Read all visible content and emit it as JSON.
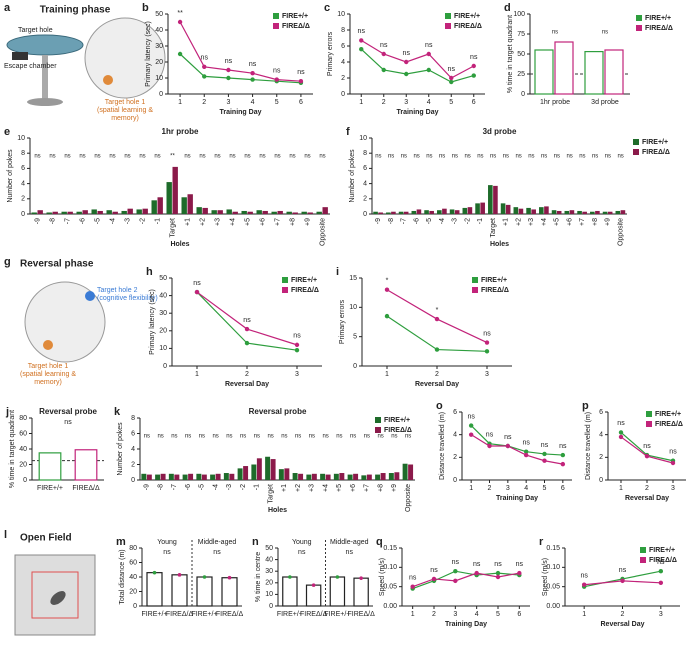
{
  "schematics": [
    {
      "label": "a",
      "title": "Training phase",
      "texts": [
        "Target hole",
        "Escape chamber",
        "Target hole 1",
        "(spatial learning &",
        "memory)"
      ]
    },
    {
      "label": "g",
      "title": "Reversal phase",
      "texts": [
        "Target hole 2",
        "(cognitive flexibility)",
        "Target hole 1",
        "(spatial learning &",
        "memory)"
      ]
    },
    {
      "label": "l",
      "title": "Open Field",
      "texts": []
    }
  ],
  "chart_data": [
    {
      "label": "b",
      "type": "line",
      "ylabel": "Primary latency (sec)",
      "xlabel": "Training Day",
      "x": [
        1,
        2,
        3,
        4,
        5,
        6
      ],
      "xlim": [
        0.5,
        6.5
      ],
      "xticks": [
        1,
        2,
        3,
        4,
        5,
        6
      ],
      "ylim": [
        0,
        50
      ],
      "yticks": [
        0,
        10,
        20,
        30,
        40,
        50
      ],
      "legend": "upper right",
      "series": [
        {
          "name": "FIRE+/+",
          "color": "#2e9e3e",
          "values": [
            25,
            11,
            10,
            9,
            8,
            7
          ]
        },
        {
          "name": "FIREΔ/Δ",
          "color": "#c2237a",
          "values": [
            45,
            17,
            15,
            13,
            9,
            8
          ]
        }
      ],
      "annotations": [
        "**",
        "ns",
        "ns",
        "ns",
        "ns",
        "ns"
      ]
    },
    {
      "label": "c",
      "type": "line",
      "ylabel": "Primary errors",
      "xlabel": "Training Day",
      "x": [
        1,
        2,
        3,
        4,
        5,
        6
      ],
      "xlim": [
        0.5,
        6.5
      ],
      "xticks": [
        1,
        2,
        3,
        4,
        5,
        6
      ],
      "ylim": [
        0,
        10
      ],
      "yticks": [
        0,
        2,
        4,
        6,
        8,
        10
      ],
      "legend": "upper right",
      "series": [
        {
          "name": "FIRE+/+",
          "color": "#2e9e3e",
          "values": [
            5.6,
            3,
            2.5,
            3,
            1.5,
            2.3
          ]
        },
        {
          "name": "FIREΔ/Δ",
          "color": "#c2237a",
          "values": [
            6.7,
            5,
            4,
            5,
            2,
            3.5
          ]
        }
      ],
      "annotations": [
        "ns",
        "ns",
        "ns",
        "ns",
        "ns",
        "ns"
      ]
    },
    {
      "label": "d",
      "type": "bar",
      "style": "outline",
      "ylabel": "% time in target quadrant",
      "categories": [
        "1hr probe",
        "3d probe"
      ],
      "ylim": [
        0,
        100
      ],
      "yticks": [
        0,
        25,
        50,
        75,
        100
      ],
      "reference": 25,
      "legend": "outside right",
      "series": [
        {
          "name": "FIRE+/+",
          "color": "#2e9e3e",
          "values": [
            55,
            53
          ]
        },
        {
          "name": "FIREΔ/Δ",
          "color": "#c2237a",
          "values": [
            65,
            55
          ]
        }
      ],
      "annotations": [
        "ns",
        "ns"
      ]
    },
    {
      "label": "e",
      "type": "bar",
      "title": "1hr probe",
      "ylabel": "Number of pokes",
      "xlabel": "Holes",
      "rotate": true,
      "categories": [
        "-9",
        "-8",
        "-7",
        "-6",
        "-5",
        "-4",
        "-3",
        "-2",
        "-1",
        "Target",
        "+1",
        "+2",
        "+3",
        "+4",
        "+5",
        "+6",
        "+7",
        "+8",
        "+9",
        "Opposite"
      ],
      "ylim": [
        0,
        10
      ],
      "yticks": [
        0,
        2,
        4,
        6,
        8,
        10
      ],
      "series": [
        {
          "name": "FIRE+/+",
          "color": "#1e6b2a",
          "values": [
            0.2,
            0.2,
            0.3,
            0.3,
            0.6,
            0.5,
            0.4,
            0.6,
            1.8,
            4.2,
            2.2,
            0.9,
            0.5,
            0.6,
            0.4,
            0.5,
            0.3,
            0.3,
            0.3,
            0.3
          ]
        },
        {
          "name": "FIREΔ/Δ",
          "color": "#8b1a4a",
          "values": [
            0.5,
            0.3,
            0.3,
            0.5,
            0.4,
            0.3,
            0.7,
            0.7,
            2.2,
            6.2,
            2.6,
            0.8,
            0.5,
            0.3,
            0.3,
            0.4,
            0.4,
            0.2,
            0.2,
            0.9
          ]
        }
      ],
      "annotations": [
        "ns",
        "ns",
        "ns",
        "ns",
        "ns",
        "ns",
        "ns",
        "ns",
        "ns",
        "**",
        "ns",
        "ns",
        "ns",
        "ns",
        "ns",
        "ns",
        "ns",
        "ns",
        "ns",
        "ns"
      ]
    },
    {
      "label": "f",
      "type": "bar",
      "title": "3d probe",
      "ylabel": "Number of pokes",
      "xlabel": "Holes",
      "rotate": true,
      "legend": "outside right",
      "categories": [
        "-9",
        "-8",
        "-7",
        "-6",
        "-5",
        "-4",
        "-3",
        "-2",
        "-1",
        "Target",
        "+1",
        "+2",
        "+3",
        "+4",
        "+5",
        "+6",
        "+7",
        "+8",
        "+9",
        "Opposite"
      ],
      "ylim": [
        0,
        10
      ],
      "yticks": [
        0,
        2,
        4,
        6,
        8,
        10
      ],
      "series": [
        {
          "name": "FIRE+/+",
          "color": "#1e6b2a",
          "values": [
            0.3,
            0.2,
            0.3,
            0.4,
            0.5,
            0.5,
            0.6,
            0.8,
            1.4,
            3.8,
            1.4,
            0.9,
            0.8,
            0.9,
            0.5,
            0.4,
            0.4,
            0.3,
            0.3,
            0.4
          ]
        },
        {
          "name": "FIREΔ/Δ",
          "color": "#8b1a4a",
          "values": [
            0.2,
            0.3,
            0.3,
            0.6,
            0.4,
            0.7,
            0.5,
            0.9,
            1.5,
            3.7,
            1.2,
            0.7,
            0.6,
            1,
            0.4,
            0.5,
            0.3,
            0.4,
            0.3,
            0.5
          ]
        }
      ],
      "annotations": [
        "ns",
        "ns",
        "ns",
        "ns",
        "ns",
        "ns",
        "ns",
        "ns",
        "ns",
        "ns",
        "ns",
        "ns",
        "ns",
        "ns",
        "ns",
        "ns",
        "ns",
        "ns",
        "ns",
        "ns"
      ]
    },
    {
      "label": "h",
      "type": "line",
      "ylabel": "Primary latency (sec)",
      "xlabel": "Reversal Day",
      "x": [
        1,
        2,
        3
      ],
      "xlim": [
        0.5,
        3.5
      ],
      "xticks": [
        1,
        2,
        3
      ],
      "ylim": [
        0,
        50
      ],
      "yticks": [
        0,
        10,
        20,
        30,
        40,
        50
      ],
      "legend": "upper right",
      "series": [
        {
          "name": "FIRE+/+",
          "color": "#2e9e3e",
          "values": [
            42,
            13,
            9
          ]
        },
        {
          "name": "FIREΔ/Δ",
          "color": "#c2237a",
          "values": [
            42,
            21,
            12
          ]
        }
      ],
      "annotations": [
        "ns",
        "ns",
        "ns"
      ]
    },
    {
      "label": "i",
      "type": "line",
      "ylabel": "Primary errors",
      "xlabel": "Reversal Day",
      "x": [
        1,
        2,
        3
      ],
      "xlim": [
        0.5,
        3.5
      ],
      "xticks": [
        1,
        2,
        3
      ],
      "ylim": [
        0,
        15
      ],
      "yticks": [
        0,
        5,
        10,
        15
      ],
      "legend": "upper right",
      "series": [
        {
          "name": "FIRE+/+",
          "color": "#2e9e3e",
          "values": [
            8.5,
            2.8,
            2.5
          ]
        },
        {
          "name": "FIREΔ/Δ",
          "color": "#c2237a",
          "values": [
            13,
            8,
            4
          ]
        }
      ],
      "annotations": [
        "*",
        "*",
        "ns"
      ]
    },
    {
      "label": "j",
      "type": "bar",
      "style": "outline",
      "title": "Reversal probe",
      "ylabel": "% time in target quadrant",
      "categories": [
        "FIRE+/+",
        "FIREΔ/Δ"
      ],
      "colors": [
        "#2e9e3e",
        "#c2237a"
      ],
      "values": [
        35,
        39
      ],
      "ylim": [
        0,
        80
      ],
      "yticks": [
        0,
        20,
        40,
        60,
        80
      ],
      "reference": 25,
      "annotation": "ns"
    },
    {
      "label": "k",
      "type": "bar",
      "title": "Reversal probe",
      "ylabel": "Number of pokes",
      "xlabel": "Holes",
      "rotate": true,
      "legend": "upper right",
      "categories": [
        "-9",
        "-8",
        "-7",
        "-6",
        "-5",
        "-4",
        "-3",
        "-2",
        "-1",
        "Target",
        "+1",
        "+2",
        "+3",
        "+4",
        "+5",
        "+6",
        "+7",
        "+8",
        "+9",
        "Opposite"
      ],
      "ylim": [
        0,
        8
      ],
      "yticks": [
        0,
        2,
        4,
        6,
        8
      ],
      "series": [
        {
          "name": "FIRE+/+",
          "color": "#1e6b2a",
          "values": [
            0.8,
            0.7,
            0.8,
            0.7,
            0.8,
            0.7,
            0.9,
            1.5,
            2,
            3,
            1.4,
            0.9,
            0.7,
            0.8,
            0.8,
            0.7,
            0.6,
            0.7,
            0.9,
            2.1
          ]
        },
        {
          "name": "FIREΔ/Δ",
          "color": "#8b1a4a",
          "values": [
            0.7,
            0.8,
            0.7,
            0.8,
            0.7,
            0.8,
            0.8,
            1.8,
            2.8,
            2.7,
            1.5,
            0.8,
            0.8,
            0.7,
            0.9,
            0.8,
            0.7,
            0.9,
            1,
            2
          ]
        }
      ],
      "annotations": [
        "ns",
        "ns",
        "ns",
        "ns",
        "ns",
        "ns",
        "ns",
        "ns",
        "ns",
        "ns",
        "ns",
        "ns",
        "ns",
        "ns",
        "ns",
        "ns",
        "ns",
        "ns",
        "ns",
        "ns"
      ]
    },
    {
      "label": "o",
      "type": "line",
      "ylabel": "Distance travelled (m)",
      "xlabel": "Training Day",
      "x": [
        1,
        2,
        3,
        4,
        5,
        6
      ],
      "xlim": [
        0.5,
        6.5
      ],
      "xticks": [
        1,
        2,
        3,
        4,
        5,
        6
      ],
      "ylim": [
        0,
        6
      ],
      "yticks": [
        0,
        2,
        4,
        6
      ],
      "series": [
        {
          "name": "FIRE+/+",
          "color": "#2e9e3e",
          "values": [
            4.8,
            3.2,
            3,
            2.5,
            2.3,
            2.2
          ]
        },
        {
          "name": "FIREΔ/Δ",
          "color": "#c2237a",
          "values": [
            4,
            3,
            3,
            2.2,
            1.7,
            1.4
          ]
        }
      ],
      "annotations": [
        "ns",
        "ns",
        "ns",
        "ns",
        "ns",
        "ns"
      ]
    },
    {
      "label": "p",
      "type": "line",
      "ylabel": "Distance travelled (m)",
      "xlabel": "Reversal Day",
      "x": [
        1,
        2,
        3
      ],
      "xlim": [
        0.5,
        3.5
      ],
      "xticks": [
        1,
        2,
        3
      ],
      "ylim": [
        0,
        6
      ],
      "yticks": [
        0,
        2,
        4,
        6
      ],
      "legend": "upper right",
      "series": [
        {
          "name": "FIRE+/+",
          "color": "#2e9e3e",
          "values": [
            4.2,
            2.2,
            1.7
          ]
        },
        {
          "name": "FIREΔ/Δ",
          "color": "#c2237a",
          "values": [
            3.8,
            2.1,
            1.5
          ]
        }
      ],
      "annotations": [
        "ns",
        "ns",
        "ns"
      ]
    },
    {
      "label": "m",
      "type": "bar",
      "style": "outline",
      "ylabel": "Total distance (m)",
      "categories": [
        "FIRE+/+",
        "FIREΔ/Δ",
        "FIRE+/+",
        "FIREΔ/Δ"
      ],
      "colors": [
        "#2e9e3e",
        "#c2237a",
        "#2e9e3e",
        "#c2237a"
      ],
      "values": [
        46,
        43,
        40,
        39
      ],
      "ylim": [
        0,
        80
      ],
      "yticks": [
        0,
        20,
        40,
        60,
        80
      ],
      "groups": [
        "Young",
        "Middle-aged"
      ],
      "annotations": [
        "ns",
        "ns"
      ]
    },
    {
      "label": "n",
      "type": "bar",
      "style": "outline",
      "ylabel": "% time in centre",
      "categories": [
        "FIRE+/+",
        "FIREΔ/Δ",
        "FIRE+/+",
        "FIREΔ/Δ"
      ],
      "colors": [
        "#2e9e3e",
        "#c2237a",
        "#2e9e3e",
        "#c2237a"
      ],
      "values": [
        25,
        18,
        25,
        24
      ],
      "ylim": [
        0,
        50
      ],
      "yticks": [
        0,
        10,
        20,
        30,
        40,
        50
      ],
      "groups": [
        "Young",
        "Middle-aged"
      ],
      "annotations": [
        "ns",
        "ns"
      ]
    },
    {
      "label": "q",
      "type": "line",
      "ylabel": "Speed (m/s)",
      "xlabel": "Training Day",
      "x": [
        1,
        2,
        3,
        4,
        5,
        6
      ],
      "xlim": [
        0.5,
        6.5
      ],
      "xticks": [
        1,
        2,
        3,
        4,
        5,
        6
      ],
      "ylim": [
        0,
        0.15
      ],
      "yticks": [
        {
          "value": 0,
          "label": "0.00"
        },
        0.05,
        {
          "value": 0.1,
          "label": "0.10"
        },
        0.15
      ],
      "series": [
        {
          "name": "FIRE+/+",
          "color": "#2e9e3e",
          "values": [
            0.045,
            0.065,
            0.09,
            0.08,
            0.085,
            0.08
          ]
        },
        {
          "name": "FIREΔ/Δ",
          "color": "#c2237a",
          "values": [
            0.05,
            0.07,
            0.065,
            0.085,
            0.075,
            0.085
          ]
        }
      ],
      "annotations": [
        "ns",
        "ns",
        "ns",
        "ns",
        "ns",
        "ns"
      ]
    },
    {
      "label": "r",
      "type": "line",
      "ylabel": "Speed (m/s)",
      "xlabel": "Reversal Day",
      "x": [
        1,
        2,
        3
      ],
      "xlim": [
        0.5,
        3.5
      ],
      "xticks": [
        1,
        2,
        3
      ],
      "ylim": [
        0,
        0.15
      ],
      "yticks": [
        {
          "value": 0,
          "label": "0.00"
        },
        0.05,
        {
          "value": 0.1,
          "label": "0.10"
        },
        0.15
      ],
      "legend": "upper right",
      "series": [
        {
          "name": "FIRE+/+",
          "color": "#2e9e3e",
          "values": [
            0.05,
            0.07,
            0.09
          ]
        },
        {
          "name": "FIREΔ/Δ",
          "color": "#c2237a",
          "values": [
            0.055,
            0.065,
            0.06
          ]
        }
      ],
      "annotations": [
        "ns",
        "ns",
        "ns"
      ]
    }
  ]
}
